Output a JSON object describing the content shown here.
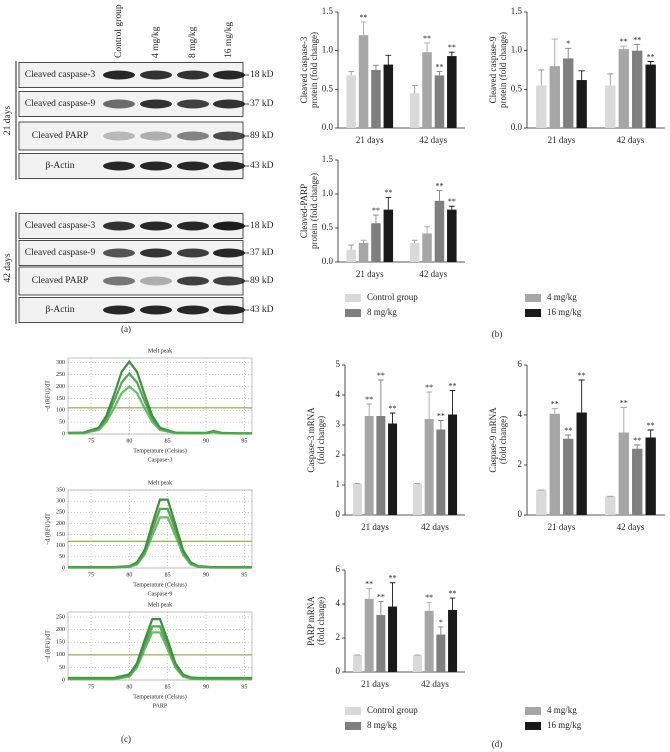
{
  "panel_labels": [
    "(a)",
    "(b)",
    "(c)",
    "(d)"
  ],
  "blot": {
    "columns": [
      "Control group",
      "4 mg/kg",
      "8 mg/kg",
      "16 mg/kg"
    ],
    "groups": [
      {
        "label": "21 days",
        "rows": [
          {
            "protein": "Cleaved caspase-3",
            "size": "18 kD"
          },
          {
            "protein": "Cleaved caspase-9",
            "size": "37 kD"
          },
          {
            "protein": "Cleaved PARP",
            "size": "89 kD"
          },
          {
            "protein": "β-Actin",
            "size": "43 kD"
          }
        ]
      },
      {
        "label": "42 days",
        "rows": [
          {
            "protein": "Cleaved caspase-3",
            "size": "18 kD"
          },
          {
            "protein": "Cleaved caspase-9",
            "size": "37 kD"
          },
          {
            "protein": "Cleaved PARP",
            "size": "89 kD"
          },
          {
            "protein": "β-Actin",
            "size": "43 kD"
          }
        ]
      }
    ]
  },
  "chart_data": [
    {
      "type": "bar",
      "y_label": [
        "Cleaved caspase-3",
        "protein (fold change)"
      ],
      "categories": [
        "21 days",
        "42 days"
      ],
      "ylim": [
        0,
        1.5
      ],
      "yticks": [
        {
          "value": 0,
          "label": "0.0"
        },
        0.5,
        {
          "value": 1,
          "label": "1.0"
        },
        1.5
      ],
      "series": [
        {
          "color": "#d9d9d9",
          "values": [
            0.68,
            0.45
          ],
          "errors": [
            0.05,
            0.1
          ],
          "significance": [
            null,
            null
          ]
        },
        {
          "color": "#a6a6a6",
          "values": [
            1.2,
            0.98
          ],
          "errors": [
            0.17,
            0.12
          ],
          "significance": [
            "**",
            "**"
          ]
        },
        {
          "color": "#7f7f7f",
          "values": [
            0.75,
            0.68
          ],
          "errors": [
            0.06,
            0.05
          ],
          "significance": [
            null,
            "**"
          ]
        },
        {
          "color": "#1a1a1a",
          "values": [
            0.82,
            0.93
          ],
          "errors": [
            0.12,
            0.05
          ],
          "significance": [
            null,
            "**"
          ]
        }
      ]
    },
    {
      "type": "bar",
      "y_label": [
        "Cleaved caspase-9",
        "protein (fold change)"
      ],
      "categories": [
        "21 days",
        "42 days"
      ],
      "ylim": [
        0,
        1.5
      ],
      "yticks": [
        {
          "value": 0,
          "label": "0.0"
        },
        0.5,
        {
          "value": 1,
          "label": "1.0"
        },
        1.5
      ],
      "series": [
        {
          "color": "#d9d9d9",
          "values": [
            0.55,
            0.55
          ],
          "errors": [
            0.2,
            0.15
          ],
          "significance": [
            null,
            null
          ]
        },
        {
          "color": "#a6a6a6",
          "values": [
            0.8,
            1.02
          ],
          "errors": [
            0.35,
            0.04
          ],
          "significance": [
            null,
            "**"
          ]
        },
        {
          "color": "#7f7f7f",
          "values": [
            0.9,
            1.0
          ],
          "errors": [
            0.13,
            0.08
          ],
          "significance": [
            "*",
            "**"
          ]
        },
        {
          "color": "#1a1a1a",
          "values": [
            0.62,
            0.82
          ],
          "errors": [
            0.12,
            0.04
          ],
          "significance": [
            null,
            "**"
          ]
        }
      ]
    },
    {
      "type": "bar",
      "y_label": [
        "Cleaved-PARP",
        "protein (fold change)"
      ],
      "categories": [
        "21 days",
        "42 days"
      ],
      "ylim": [
        0,
        1.5
      ],
      "yticks": [
        {
          "value": 0,
          "label": "0.0"
        },
        0.5,
        {
          "value": 1,
          "label": "1.0"
        },
        1.5
      ],
      "series": [
        {
          "name": "Control group",
          "color": "#d9d9d9",
          "values": [
            0.18,
            0.28
          ],
          "errors": [
            0.07,
            0.04
          ],
          "significance": [
            null,
            null
          ]
        },
        {
          "name": "4 mg/kg",
          "color": "#a6a6a6",
          "values": [
            0.28,
            0.42
          ],
          "errors": [
            0.04,
            0.1
          ],
          "significance": [
            null,
            null
          ]
        },
        {
          "name": "8 mg/kg",
          "color": "#7f7f7f",
          "values": [
            0.57,
            0.9
          ],
          "errors": [
            0.12,
            0.15
          ],
          "significance": [
            "**",
            "**"
          ]
        },
        {
          "name": "16 mg/kg",
          "color": "#1a1a1a",
          "values": [
            0.77,
            0.77
          ],
          "errors": [
            0.18,
            0.05
          ],
          "significance": [
            "**",
            "**"
          ]
        }
      ]
    },
    {
      "type": "line",
      "title": "Melt peak",
      "x_label": "Temperature (Celsius)",
      "y_label": "−d (RFU)/dT",
      "caption": "Caspase-3",
      "xlim": [
        72,
        96
      ],
      "xticks": [
        75,
        80,
        85,
        90,
        95
      ],
      "ylim": [
        0,
        320
      ],
      "yticks": [
        0,
        50,
        100,
        150,
        200,
        250,
        300
      ],
      "threshold": 110,
      "x": [
        72,
        74,
        76,
        77,
        78,
        79,
        80,
        81,
        82,
        83,
        84,
        86,
        88,
        90,
        91,
        92,
        94,
        96
      ],
      "series": [
        {
          "color": "#1e7a1e",
          "values": [
            5,
            6,
            26,
            76,
            165,
            262,
            305,
            262,
            165,
            76,
            26,
            6,
            5,
            5,
            12,
            5,
            3,
            3
          ]
        },
        {
          "color": "#2f9a2f",
          "values": [
            4,
            5,
            22,
            63,
            137,
            217,
            255,
            217,
            137,
            63,
            22,
            5,
            4,
            4,
            10,
            4,
            3,
            3
          ]
        },
        {
          "color": "#4fb04f",
          "values": [
            3,
            4,
            17,
            50,
            108,
            172,
            200,
            172,
            108,
            50,
            17,
            4,
            3,
            3,
            8,
            3,
            2,
            2
          ]
        }
      ]
    },
    {
      "type": "line",
      "title": "Melt peak",
      "x_label": "Temperature (Celsius)",
      "y_label": "−d (RFU)/dT",
      "caption": "Caspase-9",
      "xlim": [
        72,
        96
      ],
      "xticks": [
        75,
        80,
        85,
        90,
        95
      ],
      "ylim": [
        0,
        350
      ],
      "yticks": [
        0,
        50,
        100,
        150,
        200,
        250,
        300,
        350
      ],
      "threshold": 120,
      "x": [
        72,
        75,
        78,
        80,
        81,
        82,
        83,
        84,
        85,
        86,
        87,
        88,
        89,
        91,
        93,
        96
      ],
      "series": [
        {
          "color": "#1e7a1e",
          "values": [
            4,
            4,
            4,
            8,
            25,
            81,
            198,
            307,
            307,
            198,
            81,
            25,
            8,
            4,
            4,
            4
          ]
        },
        {
          "color": "#2f9a2f",
          "values": [
            3,
            3,
            3,
            6,
            20,
            70,
            171,
            265,
            265,
            171,
            70,
            20,
            6,
            3,
            3,
            3
          ]
        },
        {
          "color": "#4fb04f",
          "values": [
            2,
            2,
            2,
            5,
            16,
            60,
            146,
            227,
            227,
            146,
            60,
            16,
            5,
            2,
            2,
            2
          ]
        }
      ]
    },
    {
      "type": "line",
      "title": "Melt peak",
      "x_label": "Temperature (Celsius)",
      "y_label": "−d (RFU)/dT",
      "caption": "PARP",
      "xlim": [
        72,
        96
      ],
      "xticks": [
        75,
        80,
        85,
        90,
        95
      ],
      "ylim": [
        0,
        270
      ],
      "yticks": [
        0,
        50,
        100,
        150,
        200,
        250
      ],
      "threshold": 100,
      "x": [
        72,
        75,
        78,
        80,
        81,
        82,
        83,
        84,
        85,
        86,
        87,
        88,
        89,
        91,
        93,
        96
      ],
      "series": [
        {
          "color": "#1e7a1e",
          "values": [
            8,
            8,
            8,
            22,
            67,
            158,
            242,
            242,
            158,
            67,
            22,
            10,
            8,
            8,
            8,
            8
          ]
        },
        {
          "color": "#2f9a2f",
          "values": [
            5,
            5,
            5,
            17,
            57,
            138,
            213,
            213,
            138,
            57,
            17,
            7,
            5,
            5,
            5,
            5
          ]
        },
        {
          "color": "#4fb04f",
          "values": [
            3,
            3,
            3,
            13,
            50,
            122,
            189,
            189,
            122,
            50,
            13,
            5,
            3,
            3,
            3,
            3
          ]
        }
      ]
    },
    {
      "type": "bar",
      "y_label": [
        "Caspase-3 mRNA",
        "(fold change)"
      ],
      "categories": [
        "21 days",
        "42 days"
      ],
      "ylim": [
        0,
        5
      ],
      "yticks": [
        0,
        1,
        2,
        3,
        4,
        5
      ],
      "series": [
        {
          "color": "#d9d9d9",
          "values": [
            1.05,
            1.05
          ],
          "errors": [
            0,
            0
          ],
          "significance": [
            null,
            null
          ]
        },
        {
          "color": "#a6a6a6",
          "values": [
            3.3,
            3.2
          ],
          "errors": [
            0.4,
            0.9
          ],
          "significance": [
            "**",
            "**"
          ]
        },
        {
          "color": "#7f7f7f",
          "values": [
            3.3,
            2.85
          ],
          "errors": [
            1.2,
            0.3
          ],
          "significance": [
            "**",
            "**"
          ]
        },
        {
          "color": "#1a1a1a",
          "values": [
            3.05,
            3.35
          ],
          "errors": [
            0.35,
            0.8
          ],
          "significance": [
            "**",
            "**"
          ]
        }
      ]
    },
    {
      "type": "bar",
      "y_label": [
        "Caspase-9 mRNA",
        "(fold change)"
      ],
      "categories": [
        "21 days",
        "42 days"
      ],
      "ylim": [
        0,
        6
      ],
      "yticks": [
        0,
        2,
        4,
        6
      ],
      "series": [
        {
          "color": "#d9d9d9",
          "values": [
            1.0,
            0.75
          ],
          "errors": [
            0,
            0
          ],
          "significance": [
            null,
            null
          ]
        },
        {
          "color": "#a6a6a6",
          "values": [
            4.05,
            3.3
          ],
          "errors": [
            0.2,
            1.0
          ],
          "significance": [
            "**",
            "**"
          ]
        },
        {
          "color": "#7f7f7f",
          "values": [
            3.05,
            2.65
          ],
          "errors": [
            0.15,
            0.15
          ],
          "significance": [
            "**",
            "**"
          ]
        },
        {
          "color": "#1a1a1a",
          "values": [
            4.1,
            3.1
          ],
          "errors": [
            1.3,
            0.3
          ],
          "significance": [
            "**",
            "**"
          ]
        }
      ]
    },
    {
      "type": "bar",
      "y_label": [
        "PARP mRNA",
        "(fold change)"
      ],
      "categories": [
        "21 days",
        "42 days"
      ],
      "ylim": [
        0,
        6
      ],
      "yticks": [
        0,
        2,
        4,
        6
      ],
      "series": [
        {
          "name": "Control group",
          "color": "#d9d9d9",
          "values": [
            1.0,
            1.0
          ],
          "errors": [
            0,
            0
          ],
          "significance": [
            null,
            null
          ]
        },
        {
          "name": "4 mg/kg",
          "color": "#a6a6a6",
          "values": [
            4.3,
            3.6
          ],
          "errors": [
            0.6,
            0.5
          ],
          "significance": [
            "**",
            "**"
          ]
        },
        {
          "name": "8 mg/kg",
          "color": "#7f7f7f",
          "values": [
            3.35,
            2.2
          ],
          "errors": [
            0.8,
            0.45
          ],
          "significance": [
            "**",
            "*"
          ]
        },
        {
          "name": "16 mg/kg",
          "color": "#1a1a1a",
          "values": [
            3.85,
            3.65
          ],
          "errors": [
            1.4,
            0.7
          ],
          "significance": [
            "**",
            "**"
          ]
        }
      ]
    }
  ]
}
